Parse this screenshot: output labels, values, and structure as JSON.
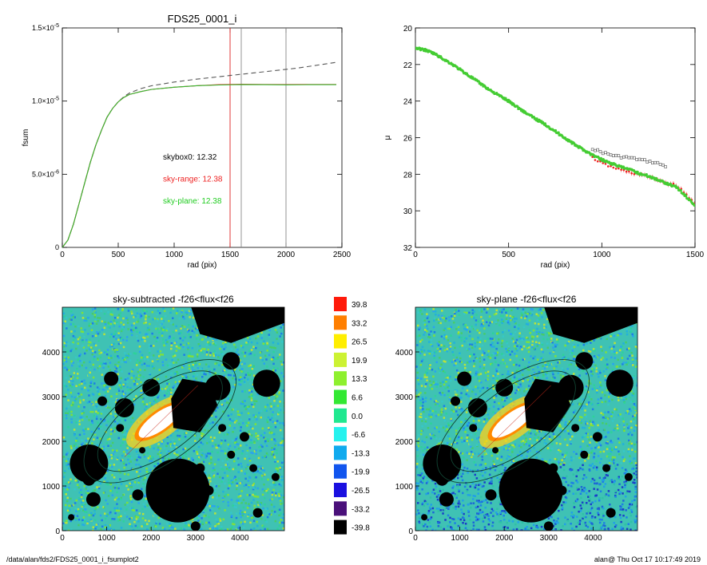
{
  "footer": {
    "path": "/data/alan/fds2/FDS25_0001_i_fsumplot2",
    "stamp": "alan@  Thu Oct 17 10:17:49 2019"
  },
  "chart_data": [
    {
      "id": "growth",
      "type": "line",
      "title": "FDS25_0001_i",
      "xlabel": "rad (pix)",
      "ylabel": "fsum",
      "xlim": [
        0,
        2500
      ],
      "ylim": [
        0,
        1.5e-05
      ],
      "x_ticks": [
        0,
        500,
        1000,
        1500,
        2000,
        2500
      ],
      "x_tick_labels": [
        "0",
        "500",
        "1000",
        "1500",
        "2000",
        "2500"
      ],
      "y_ticks": [
        0,
        5e-06,
        1e-05,
        1.5e-05
      ],
      "y_tick_labels": [
        {
          "base": "0",
          "exp": ""
        },
        {
          "base": "5.0×10",
          "exp": "-6"
        },
        {
          "base": "1.0×10",
          "exp": "-5"
        },
        {
          "base": "1.5×10",
          "exp": "-5"
        }
      ],
      "vlines": [
        {
          "x": 1500,
          "color": "#dd2222"
        },
        {
          "x": 1600,
          "color": "#888888"
        },
        {
          "x": 2000,
          "color": "#888888"
        }
      ],
      "annotations": [
        {
          "text": "skybox0: 12.32",
          "color": "#000000",
          "x": 900,
          "y": 6e-06
        },
        {
          "text": "sky-range: 12.38",
          "color": "#ee2222",
          "x": 900,
          "y": 4.5e-06
        },
        {
          "text": "sky-plane: 12.38",
          "color": "#22cc22",
          "x": 900,
          "y": 3e-06
        }
      ],
      "series": [
        {
          "style": "dashed",
          "color": "#555555",
          "x": [
            0,
            50,
            100,
            150,
            200,
            250,
            300,
            350,
            400,
            450,
            500,
            550,
            600,
            700,
            800,
            1000,
            1200,
            1500,
            1800,
            2100,
            2450
          ],
          "y": [
            0,
            5e-07,
            1.6e-06,
            3e-06,
            4.4e-06,
            5.8e-06,
            7e-06,
            8e-06,
            8.9e-06,
            9.5e-06,
            9.95e-06,
            1.03e-05,
            1.055e-05,
            1.085e-05,
            1.105e-05,
            1.13e-05,
            1.15e-05,
            1.175e-05,
            1.2e-05,
            1.225e-05,
            1.265e-05
          ]
        },
        {
          "style": "solid",
          "color": "#ee2222",
          "x": [
            0,
            50,
            100,
            150,
            200,
            250,
            300,
            350,
            400,
            450,
            500,
            550,
            600,
            700,
            800,
            1000,
            1200,
            1400,
            1600,
            1800,
            2000,
            2200,
            2450
          ],
          "y": [
            0,
            5e-07,
            1.6e-06,
            3e-06,
            4.4e-06,
            5.8e-06,
            7e-06,
            8e-06,
            8.9e-06,
            9.5e-06,
            9.95e-06,
            1.025e-05,
            1.045e-05,
            1.065e-05,
            1.08e-05,
            1.095e-05,
            1.105e-05,
            1.112e-05,
            1.115e-05,
            1.114e-05,
            1.113e-05,
            1.114e-05,
            1.114e-05
          ]
        },
        {
          "style": "solid",
          "color": "#33bb33",
          "x": [
            0,
            50,
            100,
            150,
            200,
            250,
            300,
            350,
            400,
            450,
            500,
            550,
            600,
            700,
            800,
            1000,
            1200,
            1400,
            1600,
            1800,
            2000,
            2200,
            2450
          ],
          "y": [
            0,
            5e-07,
            1.6e-06,
            3e-06,
            4.4e-06,
            5.8e-06,
            7e-06,
            8e-06,
            8.9e-06,
            9.5e-06,
            9.95e-06,
            1.025e-05,
            1.045e-05,
            1.065e-05,
            1.08e-05,
            1.095e-05,
            1.105e-05,
            1.11e-05,
            1.113e-05,
            1.112e-05,
            1.111e-05,
            1.112e-05,
            1.112e-05
          ]
        }
      ]
    },
    {
      "id": "profile",
      "type": "scatter",
      "title": "",
      "xlabel": "rad (pix)",
      "ylabel": "μ",
      "xlim": [
        0,
        1500
      ],
      "ylim": [
        32,
        20
      ],
      "x_ticks": [
        0,
        500,
        1000,
        1500
      ],
      "y_ticks": [
        20,
        22,
        24,
        26,
        28,
        30,
        32
      ],
      "series": [
        {
          "color": "#555555",
          "marker": "open-square",
          "x": [
            950,
            1000,
            1050,
            1100,
            1150,
            1200,
            1250,
            1300,
            1350
          ],
          "y": [
            26.6,
            26.8,
            26.95,
            27.05,
            27.1,
            27.2,
            27.3,
            27.4,
            27.6
          ]
        },
        {
          "color": "#ee2222",
          "marker": "dot",
          "x": [
            950,
            1000,
            1050,
            1100,
            1150,
            1200,
            1250,
            1300,
            1350,
            1400,
            1450,
            1500
          ],
          "y": [
            27.1,
            27.4,
            27.6,
            27.75,
            27.9,
            28.0,
            28.15,
            28.3,
            28.5,
            28.6,
            29.1,
            29.6
          ]
        },
        {
          "color": "#44cc33",
          "marker": "dot",
          "x": [
            0,
            25,
            50,
            100,
            150,
            200,
            250,
            300,
            350,
            400,
            450,
            500,
            550,
            600,
            650,
            700,
            750,
            800,
            850,
            900,
            950,
            1000,
            1050,
            1100,
            1150,
            1200,
            1250,
            1300,
            1350,
            1400,
            1450,
            1500
          ],
          "y": [
            21.1,
            21.15,
            21.2,
            21.4,
            21.7,
            22.0,
            22.35,
            22.7,
            23.05,
            23.4,
            23.7,
            24.0,
            24.35,
            24.7,
            25.0,
            25.3,
            25.65,
            26.0,
            26.35,
            26.65,
            26.95,
            27.2,
            27.4,
            27.6,
            27.75,
            27.95,
            28.1,
            28.3,
            28.5,
            28.7,
            29.2,
            29.7
          ]
        }
      ]
    },
    {
      "id": "sky-subtracted",
      "type": "heatmap",
      "title": "sky-subtracted -f26<flux<f26",
      "xlim": [
        0,
        5000
      ],
      "ylim": [
        0,
        5000
      ],
      "x_ticks": [
        0,
        1000,
        2000,
        3000,
        4000
      ],
      "y_ticks": [
        0,
        1000,
        2000,
        3000,
        4000
      ]
    },
    {
      "id": "sky-plane",
      "type": "heatmap",
      "title": "sky-plane -f26<flux<f26",
      "xlim": [
        0,
        5000
      ],
      "ylim": [
        0,
        5000
      ],
      "x_ticks": [
        0,
        1000,
        2000,
        3000,
        4000
      ],
      "y_ticks": [
        0,
        1000,
        2000,
        3000,
        4000
      ]
    },
    {
      "id": "colorbar",
      "type": "legend",
      "levels": [
        "39.8",
        "33.2",
        "26.5",
        "19.9",
        "13.3",
        "6.6",
        "0.0",
        "-6.6",
        "-13.3",
        "-19.9",
        "-26.5",
        "-33.2",
        "-39.8"
      ],
      "colors": [
        "#ff1a0a",
        "#ff7f00",
        "#ffee00",
        "#ccf233",
        "#8ef02e",
        "#33e833",
        "#20e890",
        "#25f2ee",
        "#10aaee",
        "#1155ee",
        "#1a10e0",
        "#4a107a",
        "#000000"
      ]
    }
  ]
}
